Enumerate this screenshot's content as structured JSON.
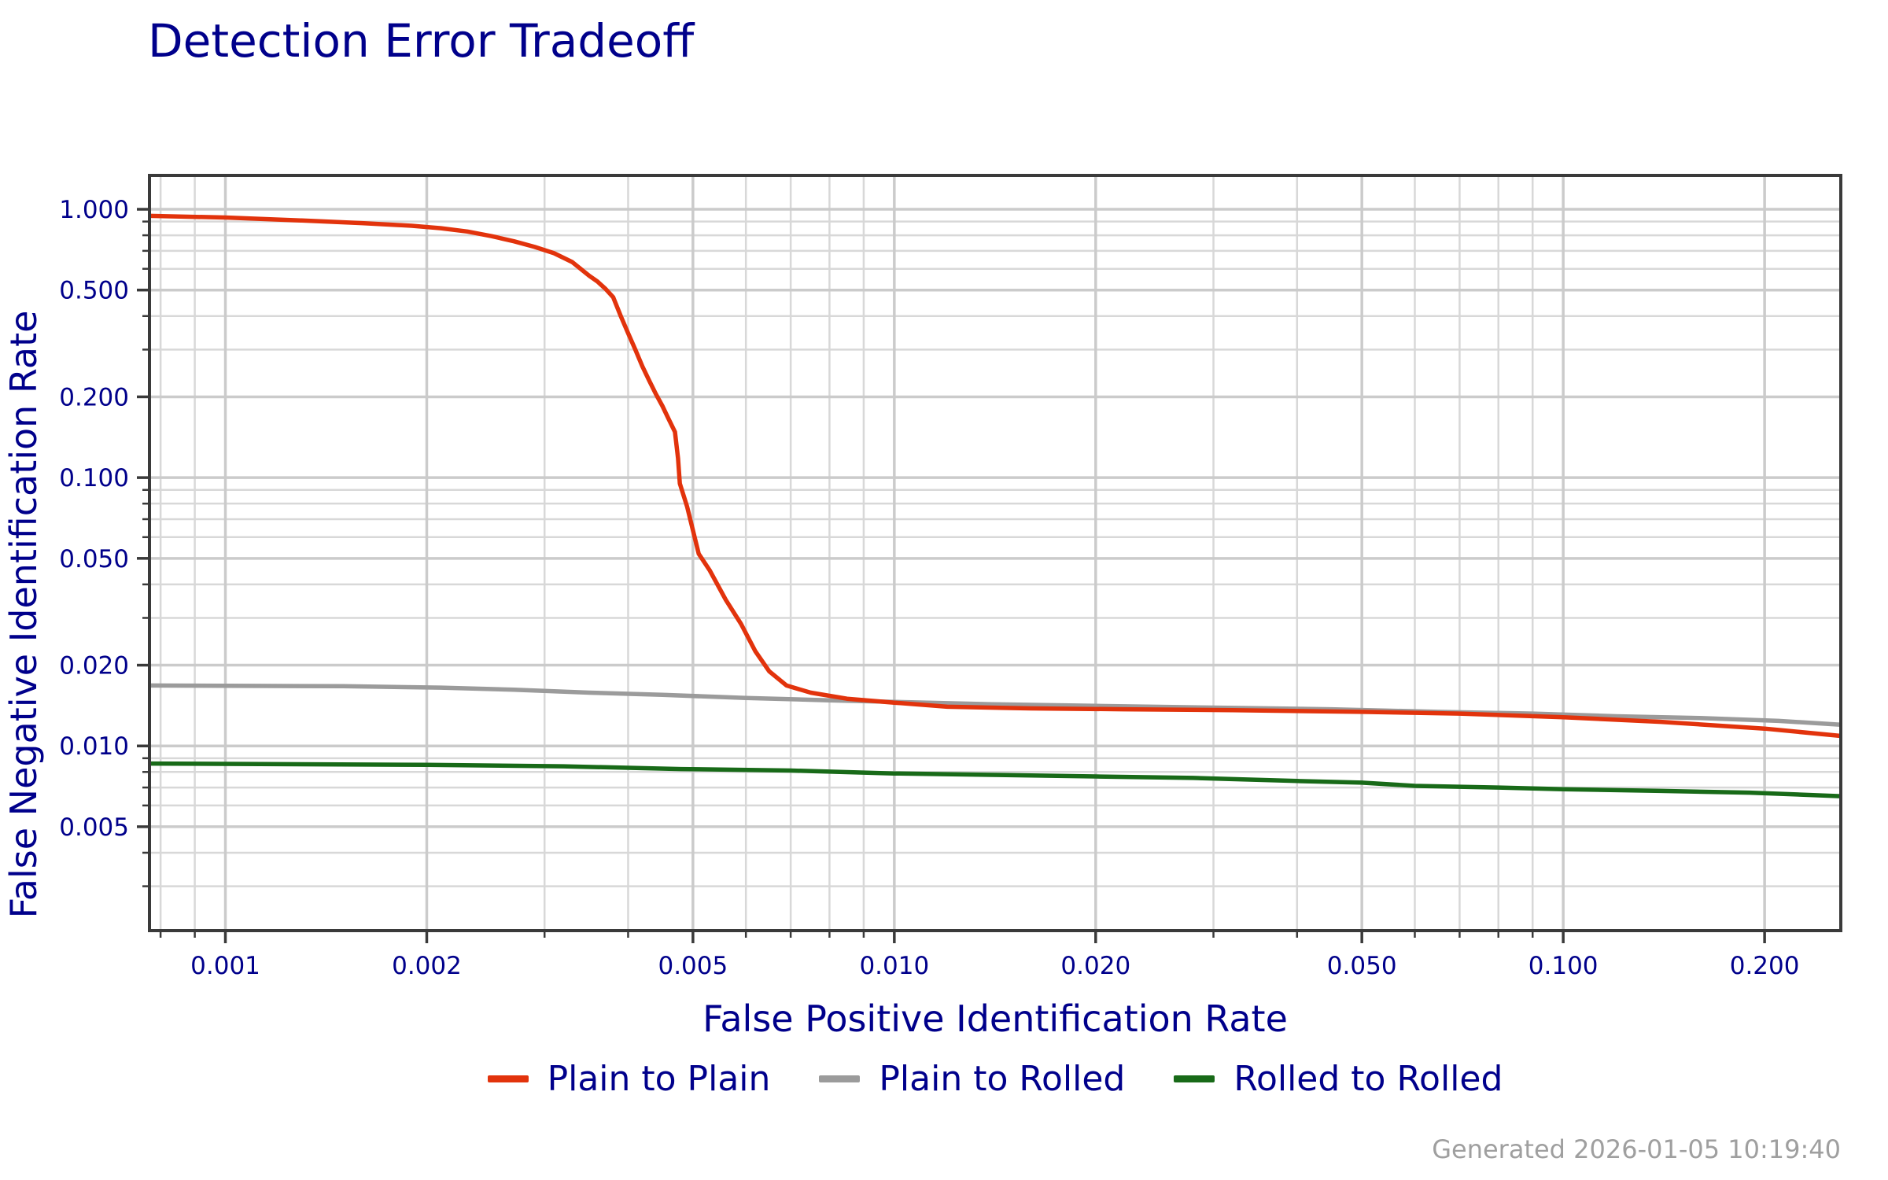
{
  "title": "Detection Error Tradeoff",
  "footer": "Generated 2026-01-05 10:19:40",
  "colors": {
    "text_navy": "#00008b",
    "grid_major": "#cbcbcb",
    "grid_minor": "#d8d8d8",
    "spine": "#3a3a3a",
    "footer_gray": "#9f9f9f",
    "background": "#ffffff",
    "series_red": "#e2330c",
    "series_gray": "#9b9b9b",
    "series_green": "#186a18"
  },
  "chart_data": {
    "type": "line",
    "title": "Detection Error Tradeoff",
    "xlabel": "False Positive Identification Rate",
    "ylabel": "False Negative Identification Rate",
    "xscale": "log",
    "yscale": "log",
    "xlim": [
      0.00077,
      0.26
    ],
    "ylim": [
      0.00205,
      1.337
    ],
    "grid": "both",
    "legend_position": "bottom",
    "x_ticks": [
      {
        "v": 0.001,
        "label": "0.001"
      },
      {
        "v": 0.002,
        "label": "0.002"
      },
      {
        "v": 0.005,
        "label": "0.005"
      },
      {
        "v": 0.01,
        "label": "0.010"
      },
      {
        "v": 0.02,
        "label": "0.020"
      },
      {
        "v": 0.05,
        "label": "0.050"
      },
      {
        "v": 0.1,
        "label": "0.100"
      },
      {
        "v": 0.2,
        "label": "0.200"
      }
    ],
    "y_ticks": [
      {
        "v": 1.0,
        "label": "1.000"
      },
      {
        "v": 0.5,
        "label": "0.500"
      },
      {
        "v": 0.2,
        "label": "0.200"
      },
      {
        "v": 0.1,
        "label": "0.100"
      },
      {
        "v": 0.05,
        "label": "0.050"
      },
      {
        "v": 0.02,
        "label": "0.020"
      },
      {
        "v": 0.01,
        "label": "0.010"
      },
      {
        "v": 0.005,
        "label": "0.005"
      }
    ],
    "x_minor": [
      0.0008,
      0.0009,
      0.003,
      0.004,
      0.006,
      0.007,
      0.008,
      0.009,
      0.03,
      0.04,
      0.06,
      0.07,
      0.08,
      0.09
    ],
    "y_minor": [
      0.9,
      0.8,
      0.7,
      0.6,
      0.4,
      0.3,
      0.09,
      0.08,
      0.07,
      0.06,
      0.04,
      0.03,
      0.009,
      0.008,
      0.007,
      0.006,
      0.004,
      0.003
    ],
    "series": [
      {
        "name": "Plain to Plain",
        "color": "#e2330c",
        "points": [
          [
            0.00077,
            0.945
          ],
          [
            0.001,
            0.932
          ],
          [
            0.0013,
            0.908
          ],
          [
            0.0016,
            0.888
          ],
          [
            0.0019,
            0.868
          ],
          [
            0.0021,
            0.85
          ],
          [
            0.0023,
            0.826
          ],
          [
            0.0025,
            0.794
          ],
          [
            0.0027,
            0.76
          ],
          [
            0.0029,
            0.724
          ],
          [
            0.0031,
            0.686
          ],
          [
            0.0033,
            0.636
          ],
          [
            0.0035,
            0.565
          ],
          [
            0.0036,
            0.538
          ],
          [
            0.0037,
            0.505
          ],
          [
            0.0038,
            0.47
          ],
          [
            0.0039,
            0.4
          ],
          [
            0.004,
            0.345
          ],
          [
            0.0041,
            0.3
          ],
          [
            0.0042,
            0.26
          ],
          [
            0.0043,
            0.23
          ],
          [
            0.0044,
            0.205
          ],
          [
            0.0045,
            0.185
          ],
          [
            0.0046,
            0.165
          ],
          [
            0.0047,
            0.148
          ],
          [
            0.00475,
            0.118
          ],
          [
            0.00478,
            0.095
          ],
          [
            0.0049,
            0.078
          ],
          [
            0.0051,
            0.052
          ],
          [
            0.0053,
            0.045
          ],
          [
            0.0056,
            0.035
          ],
          [
            0.0059,
            0.0285
          ],
          [
            0.0062,
            0.0225
          ],
          [
            0.0065,
            0.019
          ],
          [
            0.0069,
            0.0168
          ],
          [
            0.0075,
            0.0158
          ],
          [
            0.0085,
            0.015
          ],
          [
            0.01,
            0.0145
          ],
          [
            0.012,
            0.014
          ],
          [
            0.016,
            0.0138
          ],
          [
            0.022,
            0.0137
          ],
          [
            0.032,
            0.0136
          ],
          [
            0.05,
            0.0134
          ],
          [
            0.07,
            0.0132
          ],
          [
            0.1,
            0.0128
          ],
          [
            0.14,
            0.0123
          ],
          [
            0.2,
            0.0116
          ],
          [
            0.26,
            0.0109
          ]
        ]
      },
      {
        "name": "Plain to Rolled",
        "color": "#9b9b9b",
        "points": [
          [
            0.00077,
            0.0168
          ],
          [
            0.0015,
            0.0167
          ],
          [
            0.0021,
            0.0165
          ],
          [
            0.0027,
            0.0162
          ],
          [
            0.0035,
            0.0158
          ],
          [
            0.0045,
            0.0155
          ],
          [
            0.006,
            0.0151
          ],
          [
            0.008,
            0.0148
          ],
          [
            0.01,
            0.0146
          ],
          [
            0.014,
            0.0143
          ],
          [
            0.02,
            0.0141
          ],
          [
            0.03,
            0.0139
          ],
          [
            0.045,
            0.0137
          ],
          [
            0.065,
            0.0134
          ],
          [
            0.09,
            0.0132
          ],
          [
            0.12,
            0.0129
          ],
          [
            0.16,
            0.0127
          ],
          [
            0.21,
            0.0124
          ],
          [
            0.26,
            0.012
          ]
        ]
      },
      {
        "name": "Rolled to Rolled",
        "color": "#186a18",
        "points": [
          [
            0.00077,
            0.0086
          ],
          [
            0.002,
            0.0085
          ],
          [
            0.0032,
            0.0084
          ],
          [
            0.0048,
            0.0082
          ],
          [
            0.007,
            0.0081
          ],
          [
            0.01,
            0.0079
          ],
          [
            0.014,
            0.0078
          ],
          [
            0.02,
            0.0077
          ],
          [
            0.028,
            0.0076
          ],
          [
            0.04,
            0.0074
          ],
          [
            0.05,
            0.0073
          ],
          [
            0.06,
            0.0071
          ],
          [
            0.08,
            0.007
          ],
          [
            0.1,
            0.0069
          ],
          [
            0.14,
            0.0068
          ],
          [
            0.19,
            0.0067
          ],
          [
            0.26,
            0.0065
          ]
        ]
      }
    ]
  }
}
